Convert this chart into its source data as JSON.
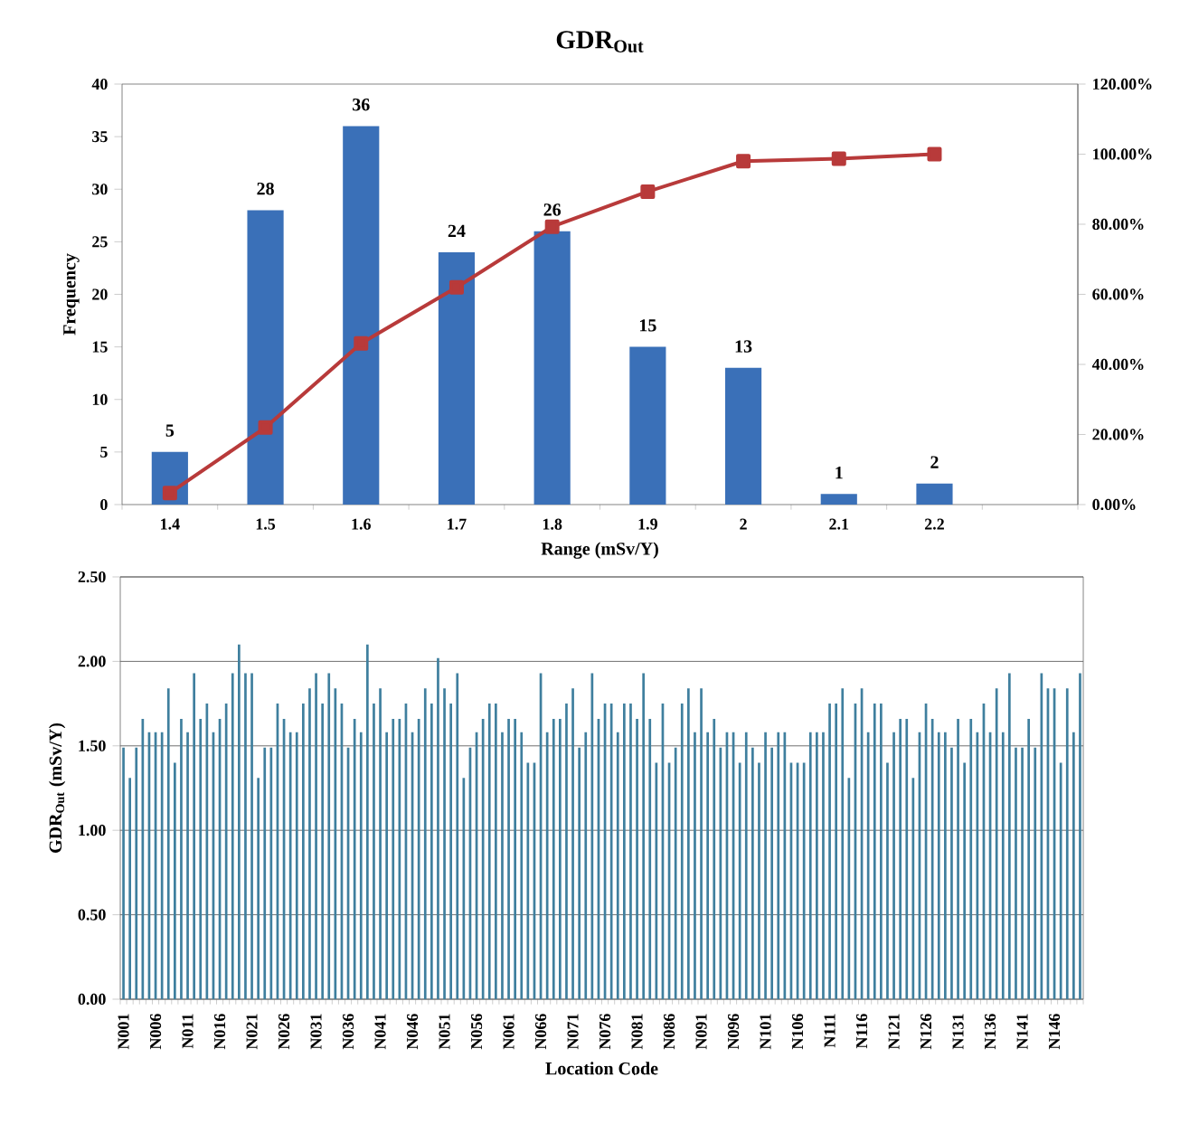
{
  "chart_data": [
    {
      "type": "bar",
      "title": "GDR$_{Out}$",
      "xlabel": "Range (mSv/Y)",
      "ylabel": "Frequency",
      "categories": [
        "1.4",
        "1.5",
        "1.6",
        "1.7",
        "1.8",
        "1.9",
        "2",
        "2.1",
        "2.2",
        null
      ],
      "series": [
        {
          "color": "#3a70b8",
          "values": [
            5,
            28,
            36,
            24,
            26,
            15,
            13,
            1,
            2,
            null
          ],
          "value_labels": [
            "5",
            "28",
            "36",
            "24",
            "26",
            "15",
            "13",
            "1",
            "2",
            null
          ]
        },
        {
          "type": "line",
          "axis": "y2",
          "color": "#b83a3a",
          "values": [
            3.3,
            22,
            46,
            62,
            79.3,
            89.3,
            98,
            98.7,
            100,
            null
          ]
        }
      ],
      "ylim": [
        0,
        40
      ],
      "yticks": [
        0,
        5,
        10,
        15,
        20,
        25,
        30,
        35,
        40
      ],
      "y2lim": [
        0,
        120
      ],
      "y2ticks": [
        {
          "value": 0,
          "label": "0.00%"
        },
        {
          "value": 20,
          "label": "20.00%"
        },
        {
          "value": 40,
          "label": "40.00%"
        },
        {
          "value": 60,
          "label": "60.00%"
        },
        {
          "value": 80,
          "label": "80.00%"
        },
        {
          "value": 100,
          "label": "100.00%"
        },
        {
          "value": 120,
          "label": "120.00%"
        }
      ],
      "marker": "square"
    },
    {
      "type": "bar",
      "xlabel": "Location Code",
      "ylabel": "GDR$_{Out}$ (mSv/Y)",
      "color": "#3f7f9e",
      "grid": "y",
      "categories": [
        "N001",
        null,
        null,
        null,
        null,
        "N006",
        null,
        null,
        null,
        null,
        "N011",
        null,
        null,
        null,
        null,
        "N016",
        null,
        null,
        null,
        null,
        "N021",
        null,
        null,
        null,
        null,
        "N026",
        null,
        null,
        null,
        null,
        "N031",
        null,
        null,
        null,
        null,
        "N036",
        null,
        null,
        null,
        null,
        "N041",
        null,
        null,
        null,
        null,
        "N046",
        null,
        null,
        null,
        null,
        "N051",
        null,
        null,
        null,
        null,
        "N056",
        null,
        null,
        null,
        null,
        "N061",
        null,
        null,
        null,
        null,
        "N066",
        null,
        null,
        null,
        null,
        "N071",
        null,
        null,
        null,
        null,
        "N076",
        null,
        null,
        null,
        null,
        "N081",
        null,
        null,
        null,
        null,
        "N086",
        null,
        null,
        null,
        null,
        "N091",
        null,
        null,
        null,
        null,
        "N096",
        null,
        null,
        null,
        null,
        "N101",
        null,
        null,
        null,
        null,
        "N106",
        null,
        null,
        null,
        null,
        "N111",
        null,
        null,
        null,
        null,
        "N116",
        null,
        null,
        null,
        null,
        "N121",
        null,
        null,
        null,
        null,
        "N126",
        null,
        null,
        null,
        null,
        "N131",
        null,
        null,
        null,
        null,
        "N136",
        null,
        null,
        null,
        null,
        "N141",
        null,
        null,
        null,
        null,
        "N146",
        null,
        null,
        null,
        null
      ],
      "values": [
        1.49,
        1.31,
        1.49,
        1.66,
        1.58,
        1.58,
        1.58,
        1.84,
        1.4,
        1.66,
        1.58,
        1.93,
        1.66,
        1.75,
        1.58,
        1.66,
        1.75,
        1.93,
        2.1,
        1.93,
        1.93,
        1.31,
        1.49,
        1.49,
        1.75,
        1.66,
        1.58,
        1.58,
        1.75,
        1.84,
        1.93,
        1.75,
        1.93,
        1.84,
        1.75,
        1.49,
        1.66,
        1.58,
        2.1,
        1.75,
        1.84,
        1.58,
        1.66,
        1.66,
        1.75,
        1.58,
        1.66,
        1.84,
        1.75,
        2.02,
        1.84,
        1.75,
        1.93,
        1.31,
        1.49,
        1.58,
        1.66,
        1.75,
        1.75,
        1.58,
        1.66,
        1.66,
        1.58,
        1.4,
        1.4,
        1.93,
        1.58,
        1.66,
        1.66,
        1.75,
        1.84,
        1.49,
        1.58,
        1.93,
        1.66,
        1.75,
        1.75,
        1.58,
        1.75,
        1.75,
        1.66,
        1.93,
        1.66,
        1.4,
        1.75,
        1.4,
        1.49,
        1.75,
        1.84,
        1.58,
        1.84,
        1.58,
        1.66,
        1.49,
        1.58,
        1.58,
        1.4,
        1.58,
        1.49,
        1.4,
        1.58,
        1.49,
        1.58,
        1.58,
        1.4,
        1.4,
        1.4,
        1.58,
        1.58,
        1.58,
        1.75,
        1.75,
        1.84,
        1.31,
        1.75,
        1.84,
        1.58,
        1.75,
        1.75,
        1.4,
        1.58,
        1.66,
        1.66,
        1.31,
        1.58,
        1.75,
        1.66,
        1.58,
        1.58,
        1.49,
        1.66,
        1.4,
        1.66,
        1.58,
        1.75,
        1.58,
        1.84,
        1.58,
        1.93,
        1.49,
        1.49,
        1.66,
        1.49,
        1.93,
        1.84,
        1.84,
        1.4,
        1.84,
        1.58,
        1.93
      ],
      "ylim": [
        0,
        2.5
      ],
      "yticks": [
        {
          "value": 0,
          "label": "0.00"
        },
        {
          "value": 0.5,
          "label": "0.50"
        },
        {
          "value": 1,
          "label": "1.00"
        },
        {
          "value": 1.5,
          "label": "1.50"
        },
        {
          "value": 2,
          "label": "2.00"
        },
        {
          "value": 2.5,
          "label": "2.50"
        }
      ]
    }
  ]
}
